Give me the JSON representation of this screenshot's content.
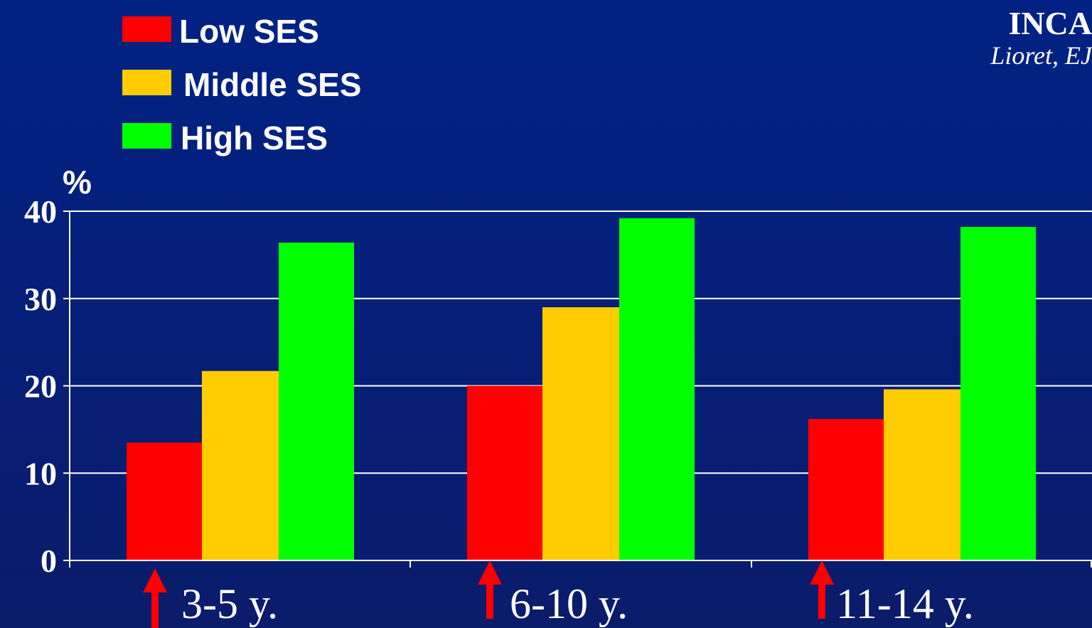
{
  "source": {
    "title": "INCA",
    "subtitle": "Lioret, EJ"
  },
  "chart_data": {
    "type": "bar",
    "title": "",
    "xlabel": "",
    "ylabel": "%",
    "ylim": [
      0,
      40
    ],
    "yticks": [
      "0",
      "10",
      "20",
      "30",
      "40"
    ],
    "grid": true,
    "legend_position": "top-left",
    "categories": [
      "3-5 y.",
      "6-10 y.",
      "11-14 y."
    ],
    "series": [
      {
        "name": "Low SES",
        "color": "#ff0000",
        "values": [
          13.5,
          20,
          16.2
        ]
      },
      {
        "name": "Middle SES",
        "color": "#ffcc00",
        "values": [
          21.7,
          29,
          19.6
        ]
      },
      {
        "name": "High SES",
        "color": "#00ff00",
        "values": [
          36.4,
          39.2,
          38.2
        ]
      }
    ],
    "annotations": [
      {
        "type": "arrow",
        "color": "#ff0000",
        "category": "3-5 y."
      },
      {
        "type": "arrow",
        "color": "#ff0000",
        "category": "6-10 y."
      },
      {
        "type": "arrow",
        "color": "#ff0000",
        "category": "11-14 y."
      }
    ]
  }
}
